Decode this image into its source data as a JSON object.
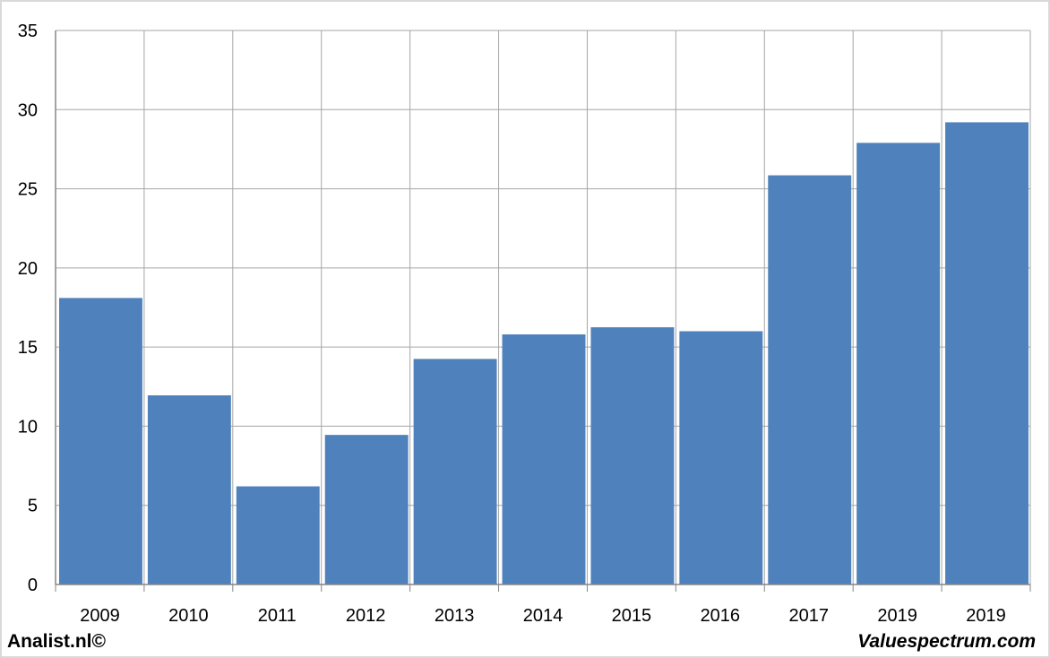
{
  "chart_data": {
    "type": "bar",
    "categories": [
      "2009",
      "2010",
      "2011",
      "2012",
      "2013",
      "2014",
      "2015",
      "2016",
      "2017",
      "2019",
      "2019"
    ],
    "values": [
      18.1,
      11.95,
      6.2,
      9.45,
      14.25,
      15.8,
      16.25,
      16.0,
      25.85,
      27.9,
      29.2
    ],
    "ylim": [
      0,
      35
    ],
    "yticks": [
      "0",
      "5",
      "10",
      "15",
      "20",
      "25",
      "30",
      "35"
    ],
    "grid": true,
    "bar_color": "#4f81bd",
    "grid_color": "#a6a6a6"
  },
  "footer": {
    "left_text": "Analist.nl©",
    "right_text": "Valuespectrum.com"
  }
}
